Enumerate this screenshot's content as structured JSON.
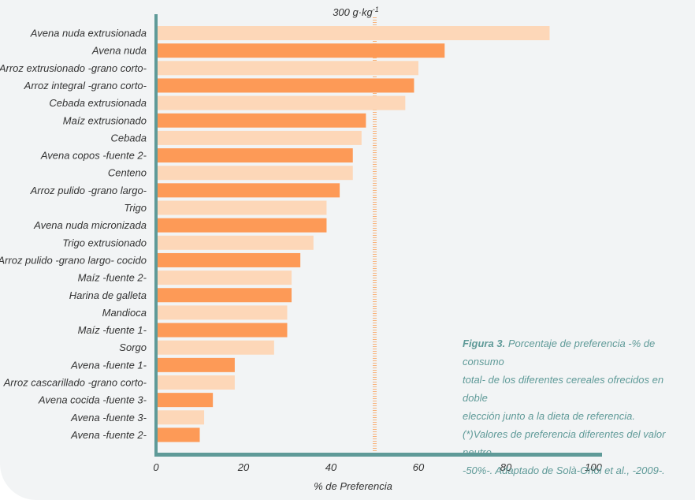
{
  "chart_data": {
    "type": "bar",
    "orientation": "horizontal",
    "categories": [
      "Avena nuda extrusionada",
      "Avena nuda",
      "Arroz extrusionado -grano  corto-",
      "Arroz integral -grano  corto-",
      "Cebada extrusionada",
      "Maíz extrusionado",
      "Cebada",
      "Avena copos -fuente 2-",
      "Centeno",
      "Arroz pulido -grano largo-",
      "Trigo",
      "Avena nuda micronizada",
      "Trigo extrusionado",
      "Arroz pulido -grano largo- cocido",
      "Maíz -fuente 2-",
      "Harina de galleta",
      "Mandioca",
      "Maíz -fuente 1-",
      "Sorgo",
      "Avena -fuente 1-",
      "Arroz cascarillado -grano corto-",
      "Avena cocida -fuente 3-",
      "Avena -fuente 3-",
      "Avena -fuente 2-"
    ],
    "values": [
      90,
      66,
      60,
      59,
      57,
      48,
      47,
      45,
      45,
      42,
      39,
      39,
      36,
      33,
      31,
      31,
      30,
      30,
      27,
      18,
      18,
      13,
      11,
      10
    ],
    "highlighted": [
      false,
      true,
      false,
      true,
      false,
      true,
      false,
      true,
      false,
      true,
      false,
      true,
      false,
      true,
      false,
      true,
      false,
      true,
      false,
      true,
      false,
      true,
      false,
      true
    ],
    "xlabel": "% de Preferencia",
    "ylabel": "",
    "xlim": [
      0,
      100
    ],
    "xticks": [
      "0",
      "20",
      "40",
      "60",
      "80",
      "100"
    ],
    "reference_line": {
      "value": 50,
      "label_main": "300 g·kg",
      "label_sup": "-1"
    },
    "grid": false,
    "colors": {
      "light": "#fdd7b8",
      "dark": "#fd9a57",
      "axis": "#5f9a98",
      "ref": "#f8b27a"
    }
  },
  "caption": {
    "lead": "Figura 3.",
    "lines": [
      "Porcentaje de preferencia -% de consumo",
      "total- de los diferentes cereales ofrecidos en doble",
      "elección junto a la dieta de referencia.",
      "(*)Valores de preferencia diferentes del valor neutro",
      "-50%-. Adaptado de Solà-Oriol et al., -2009-."
    ]
  }
}
